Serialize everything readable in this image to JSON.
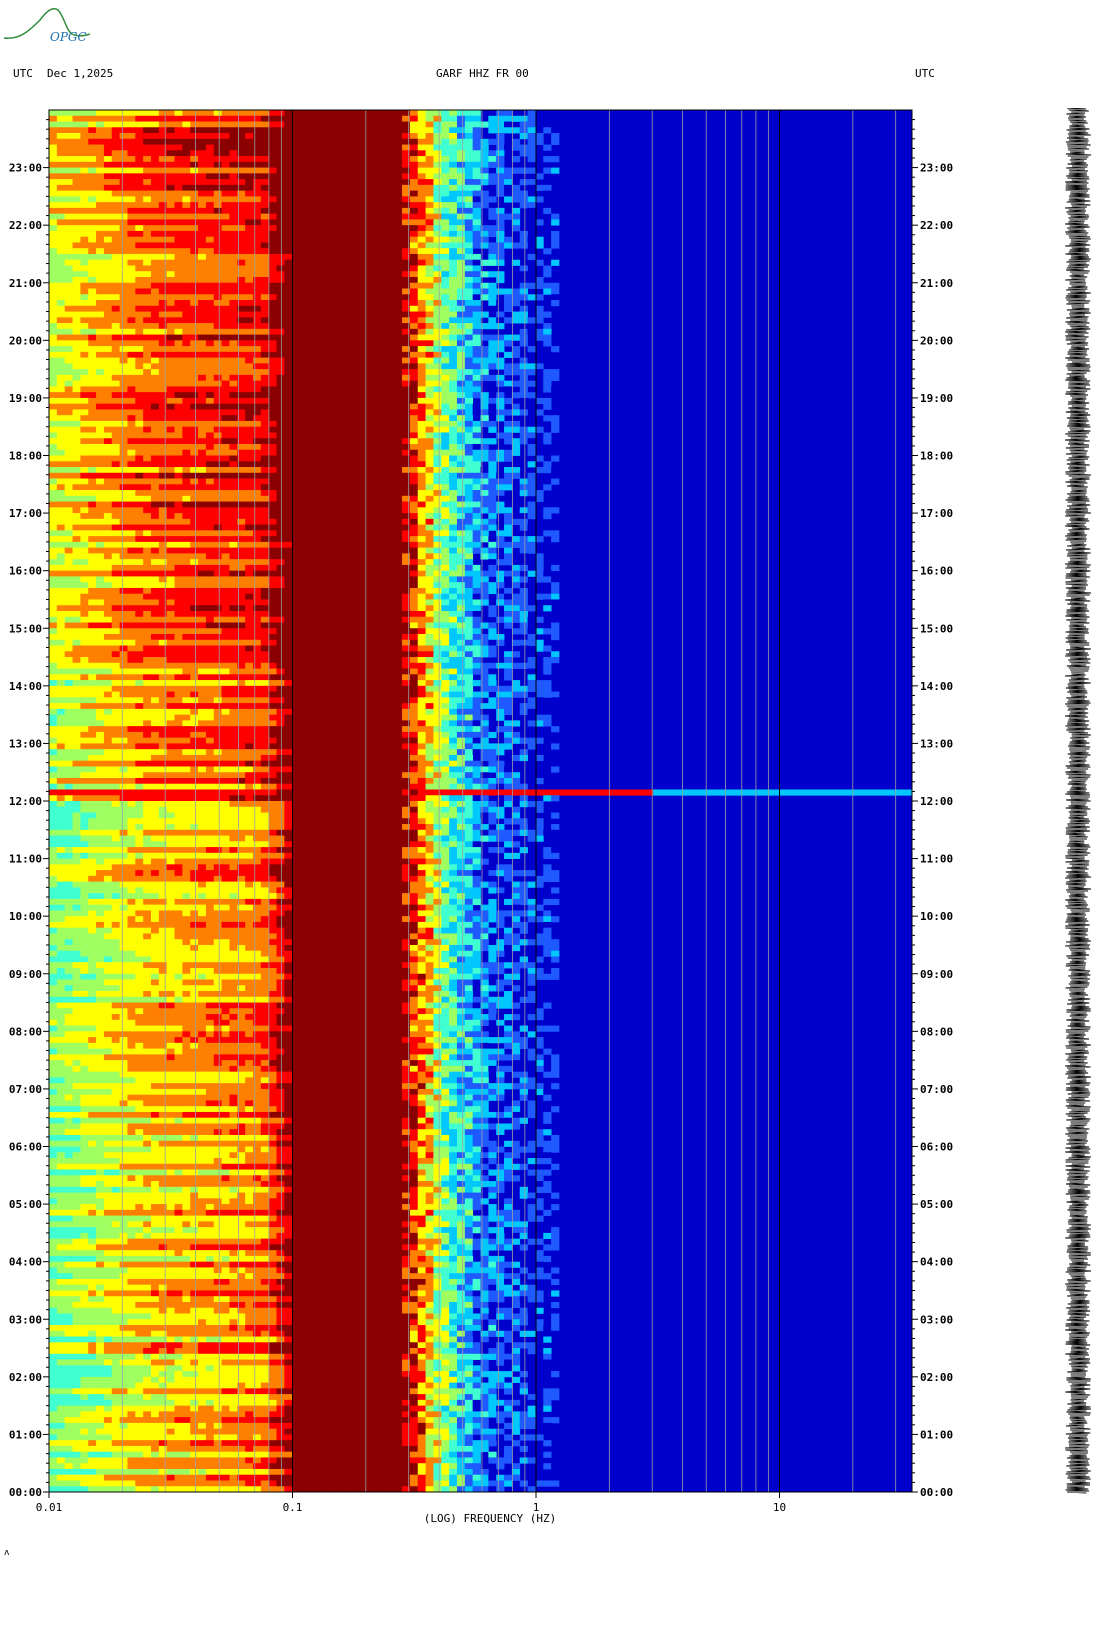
{
  "header": {
    "left_label": "UTC",
    "date": "Dec 1,2025",
    "station": "GARF HHZ FR 00",
    "right_label": "UTC"
  },
  "logo": {
    "text": "OPGC"
  },
  "chart_data": {
    "type": "heatmap",
    "title": "GARF HHZ FR 00",
    "xlabel": "(LOG) FREQUENCY (HZ)",
    "x_scale": "log",
    "xlim": [
      0.01,
      35
    ],
    "x_ticks": [
      {
        "value": 0.01,
        "label": "0.01"
      },
      {
        "value": 0.1,
        "label": "0.1"
      },
      {
        "value": 1,
        "label": "1"
      },
      {
        "value": 10,
        "label": "10"
      }
    ],
    "ylabel": "UTC",
    "ylim_hours": [
      0,
      24
    ],
    "y_ticks": [
      "00:00",
      "01:00",
      "02:00",
      "03:00",
      "04:00",
      "05:00",
      "06:00",
      "07:00",
      "08:00",
      "09:00",
      "10:00",
      "11:00",
      "12:00",
      "13:00",
      "14:00",
      "15:00",
      "16:00",
      "17:00",
      "18:00",
      "19:00",
      "20:00",
      "21:00",
      "22:00",
      "23:00"
    ],
    "colormap": [
      "#00008b",
      "#0000cd",
      "#1e5aff",
      "#00c8ff",
      "#40ffd0",
      "#a0ff60",
      "#ffff00",
      "#ff8000",
      "#ff0000",
      "#8b0000"
    ],
    "power_profile": [
      {
        "freq": 0.01,
        "level": 0.52
      },
      {
        "freq": 0.025,
        "level": 0.7
      },
      {
        "freq": 0.075,
        "level": 0.78
      },
      {
        "freq": 0.1,
        "level": 1.0
      },
      {
        "freq": 0.3,
        "level": 0.95
      },
      {
        "freq": 0.4,
        "level": 0.55
      },
      {
        "freq": 0.6,
        "level": 0.25
      },
      {
        "freq": 1.0,
        "level": 0.12
      },
      {
        "freq": 35,
        "level": 0.06
      }
    ],
    "events": [
      {
        "time": "12:10",
        "description": "broadband transient"
      }
    ],
    "trace_label": "seismogram"
  }
}
